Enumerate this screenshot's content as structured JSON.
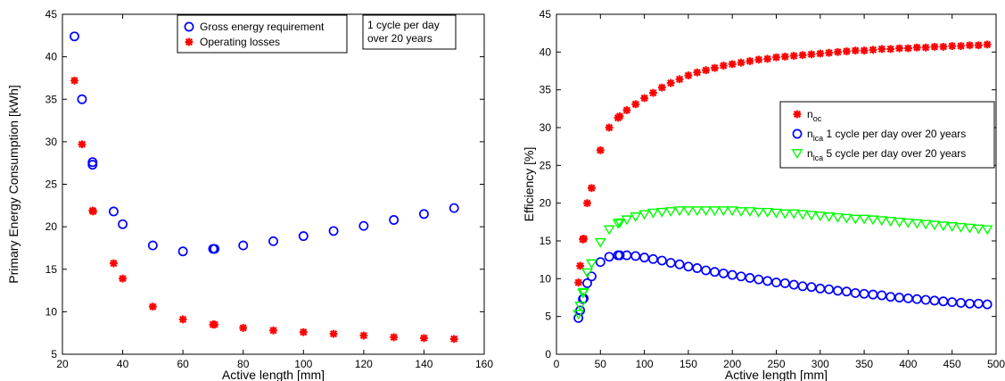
{
  "chart_data": [
    {
      "type": "scatter",
      "xlabel": "Active length [mm]",
      "ylabel": "Primary Energy Consumption [kWh]",
      "xlim": [
        20,
        160
      ],
      "ylim": [
        5,
        45
      ],
      "xticks": [
        20,
        40,
        60,
        80,
        100,
        120,
        140,
        160
      ],
      "yticks": [
        5,
        10,
        15,
        20,
        25,
        30,
        35,
        40,
        45
      ],
      "grid": false,
      "legend": "top-center",
      "annotation": [
        "1 cycle per day",
        "over 20 years"
      ],
      "series": [
        {
          "name": "Gross energy requirement",
          "marker": "circle",
          "color": "#0000ff",
          "x": [
            24,
            26.5,
            30,
            30,
            37,
            40,
            50,
            60,
            70,
            70.5,
            80,
            90,
            100,
            110,
            120,
            130,
            140,
            150
          ],
          "y": [
            42.4,
            35.0,
            27.6,
            27.3,
            21.8,
            20.3,
            17.8,
            17.1,
            17.4,
            17.4,
            17.8,
            18.3,
            18.9,
            19.5,
            20.1,
            20.8,
            21.5,
            22.2
          ]
        },
        {
          "name": "Operating losses",
          "marker": "asterisk",
          "color": "#ff0000",
          "x": [
            24,
            26.5,
            30,
            30.2,
            37,
            40,
            50,
            60,
            70,
            70.5,
            80,
            90,
            100,
            110,
            120,
            130,
            140,
            150
          ],
          "y": [
            37.2,
            29.7,
            21.9,
            21.8,
            15.7,
            13.9,
            10.6,
            9.1,
            8.5,
            8.5,
            8.1,
            7.8,
            7.6,
            7.4,
            7.2,
            7.0,
            6.9,
            6.8
          ]
        }
      ]
    },
    {
      "type": "scatter",
      "xlabel": "Active length [mm]",
      "ylabel": "Efficiency [%]",
      "xlim": [
        0,
        500
      ],
      "ylim": [
        0,
        45
      ],
      "xticks": [
        0,
        50,
        100,
        150,
        200,
        250,
        300,
        350,
        400,
        450,
        500
      ],
      "yticks": [
        0,
        5,
        10,
        15,
        20,
        25,
        30,
        35,
        40,
        45
      ],
      "grid": false,
      "legend": "center-right",
      "legend_entries": [
        {
          "base": "n",
          "sub": "oc",
          "rest": ""
        },
        {
          "base": "n",
          "sub": "lca",
          "rest": " 1 cycle per day over 20 years"
        },
        {
          "base": "n",
          "sub": "lca",
          "rest": " 5 cycle per day over 20 years"
        }
      ],
      "series": [
        {
          "marker": "asterisk",
          "color": "#ff0000",
          "x": [
            25,
            27,
            30,
            31,
            35,
            40,
            50,
            60,
            70,
            72,
            80,
            90,
            100,
            110,
            120,
            130,
            140,
            150,
            160,
            170,
            180,
            190,
            200,
            210,
            220,
            230,
            240,
            250,
            260,
            270,
            280,
            290,
            300,
            310,
            320,
            330,
            340,
            350,
            360,
            370,
            380,
            390,
            400,
            410,
            420,
            430,
            440,
            450,
            460,
            470,
            480,
            490
          ],
          "y": [
            9.5,
            11.7,
            15.2,
            15.3,
            20.0,
            22.0,
            27.0,
            30.0,
            31.3,
            31.5,
            32.3,
            33.1,
            33.9,
            34.6,
            35.3,
            35.9,
            36.4,
            36.9,
            37.3,
            37.6,
            37.9,
            38.2,
            38.4,
            38.6,
            38.8,
            39.0,
            39.1,
            39.3,
            39.4,
            39.5,
            39.6,
            39.7,
            39.8,
            39.9,
            40.0,
            40.1,
            40.2,
            40.2,
            40.3,
            40.4,
            40.4,
            40.5,
            40.5,
            40.6,
            40.6,
            40.7,
            40.7,
            40.8,
            40.8,
            40.9,
            40.9,
            41.0
          ]
        },
        {
          "marker": "circle",
          "color": "#0000ff",
          "x": [
            25,
            27,
            30,
            31,
            35,
            40,
            50,
            60,
            70,
            72,
            80,
            90,
            100,
            110,
            120,
            130,
            140,
            150,
            160,
            170,
            180,
            190,
            200,
            210,
            220,
            230,
            240,
            250,
            260,
            270,
            280,
            290,
            300,
            310,
            320,
            330,
            340,
            350,
            360,
            370,
            380,
            390,
            400,
            410,
            420,
            430,
            440,
            450,
            460,
            470,
            480,
            490
          ],
          "y": [
            4.8,
            5.8,
            7.3,
            7.4,
            9.4,
            10.3,
            12.2,
            12.9,
            13.1,
            13.1,
            13.1,
            13.0,
            12.8,
            12.6,
            12.4,
            12.1,
            11.9,
            11.6,
            11.4,
            11.1,
            10.9,
            10.7,
            10.5,
            10.3,
            10.1,
            9.9,
            9.7,
            9.5,
            9.4,
            9.2,
            9.0,
            8.9,
            8.7,
            8.6,
            8.4,
            8.3,
            8.1,
            8.0,
            7.9,
            7.8,
            7.6,
            7.5,
            7.4,
            7.3,
            7.2,
            7.1,
            7.0,
            6.9,
            6.8,
            6.7,
            6.7,
            6.6
          ]
        },
        {
          "marker": "triangle-down",
          "color": "#00ff00",
          "x": [
            25,
            27,
            30,
            31,
            35,
            40,
            50,
            60,
            70,
            72,
            80,
            90,
            100,
            110,
            120,
            130,
            140,
            150,
            160,
            170,
            180,
            190,
            200,
            210,
            220,
            230,
            240,
            250,
            260,
            270,
            280,
            290,
            300,
            310,
            320,
            330,
            340,
            350,
            360,
            370,
            380,
            390,
            400,
            410,
            420,
            430,
            440,
            450,
            460,
            470,
            480,
            490
          ],
          "y": [
            5.3,
            6.4,
            8.1,
            8.2,
            10.8,
            12.0,
            14.8,
            16.5,
            17.3,
            17.4,
            17.8,
            18.2,
            18.5,
            18.7,
            18.8,
            18.9,
            19.0,
            19.0,
            19.0,
            19.0,
            19.0,
            19.0,
            19.0,
            18.9,
            18.9,
            18.8,
            18.8,
            18.7,
            18.6,
            18.6,
            18.5,
            18.4,
            18.3,
            18.2,
            18.1,
            18.0,
            17.9,
            17.9,
            17.8,
            17.7,
            17.6,
            17.5,
            17.4,
            17.3,
            17.2,
            17.1,
            17.0,
            16.9,
            16.8,
            16.7,
            16.6,
            16.5
          ]
        }
      ]
    }
  ]
}
